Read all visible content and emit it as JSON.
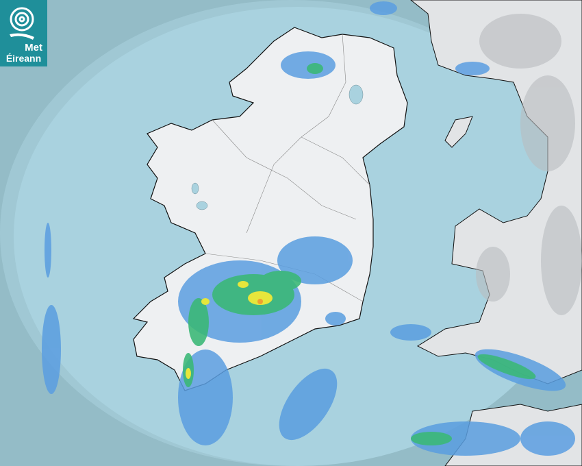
{
  "logo": {
    "line1": "Met",
    "line2": "Éireann"
  },
  "colors": {
    "outside_coverage": "#94bcc7",
    "radar_coverage_sea": "#a9d2df",
    "land": "#eef0f2",
    "highlands": "#b9bcbf",
    "rain_light": "#5a9ee0",
    "rain_moderate": "#3cb878",
    "rain_heavy": "#e6e63c",
    "rain_very_heavy": "#f0a030",
    "brand": "#1f8f9a"
  },
  "icons": [
    "met-eireann-swirl-logo"
  ]
}
